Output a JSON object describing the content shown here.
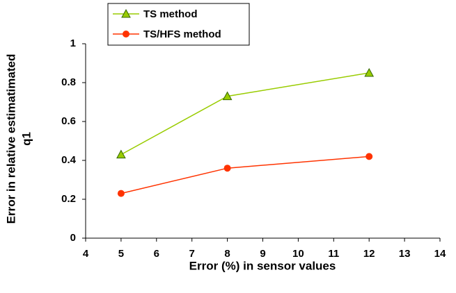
{
  "chart_data": {
    "type": "line",
    "xlabel": "Error (%) in sensor values",
    "ylabel": [
      "Error in relative estimatimated",
      "q1"
    ],
    "x": [
      5,
      8,
      12
    ],
    "series": [
      {
        "name": "TS method",
        "color": "#99cc00",
        "marker": "triangle",
        "values": [
          0.43,
          0.73,
          0.85
        ]
      },
      {
        "name": "TS/HFS method",
        "color": "#ff3300",
        "marker": "circle",
        "values": [
          0.23,
          0.36,
          0.42
        ]
      }
    ],
    "xlim": [
      4,
      14
    ],
    "xticks": [
      4,
      5,
      6,
      7,
      8,
      9,
      10,
      11,
      12,
      13,
      14
    ],
    "ylim": [
      0,
      1
    ],
    "yticks": [
      0,
      0.2,
      0.4,
      0.6,
      0.8,
      1
    ],
    "grid": false,
    "legend": "top"
  }
}
